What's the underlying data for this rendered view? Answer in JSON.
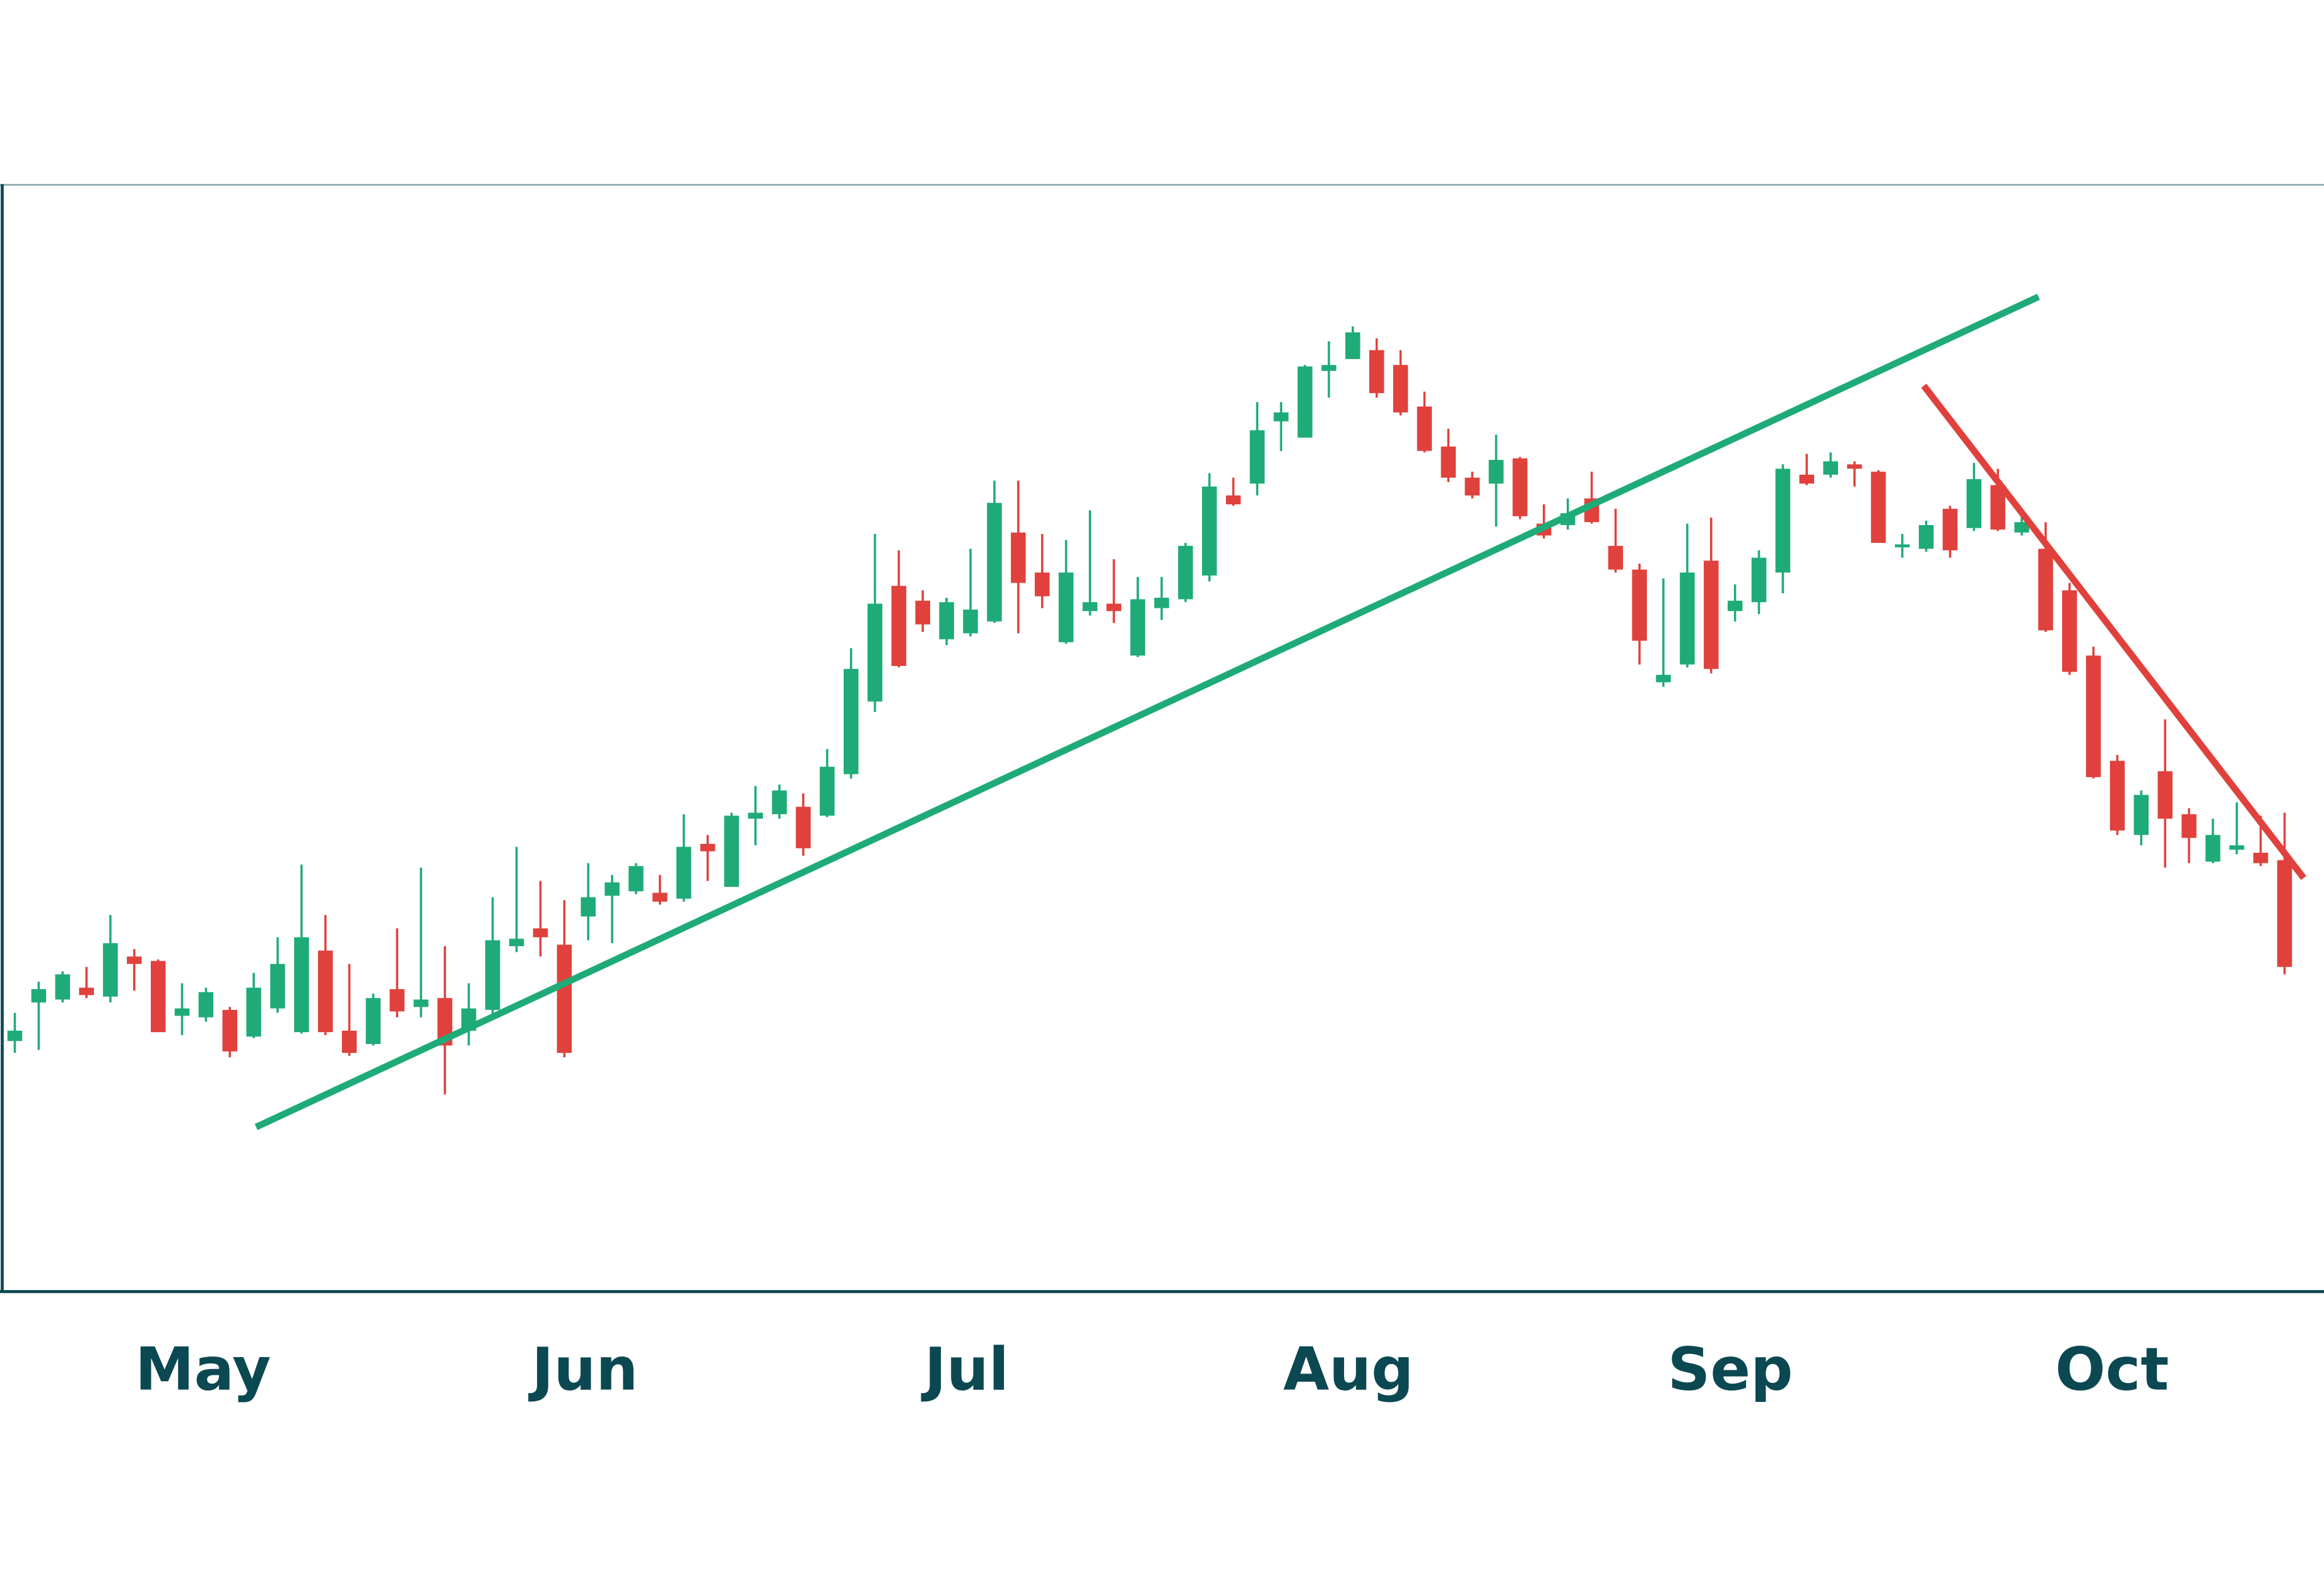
{
  "chart_data": {
    "type": "candlestick",
    "categories": [
      "May",
      "Jun",
      "Jul",
      "Aug",
      "Sep",
      "Oct"
    ],
    "up_color": "#1fab77",
    "down_color": "#e0413c",
    "ylim": [
      0,
      745
    ],
    "open": [
      168,
      194,
      196,
      204,
      198,
      225,
      222,
      185,
      184,
      189,
      171,
      190,
      174,
      229,
      175,
      166,
      203,
      191,
      197,
      175,
      189,
      232,
      244,
      233,
      252,
      266,
      269,
      268,
      264,
      301,
      272,
      318,
      321,
      326,
      320,
      348,
      397,
      475,
      465,
      439,
      443,
      451,
      511,
      484,
      437,
      458,
      463,
      428,
      460,
      466,
      482,
      536,
      544,
      586,
      575,
      620,
      628,
      634,
      624,
      596,
      569,
      548,
      544,
      561,
      517,
      516,
      534,
      502,
      486,
      410,
      422,
      492,
      458,
      464,
      484,
      550,
      550,
      557,
      552,
      501,
      500,
      527,
      514,
      543,
      511,
      500,
      472,
      428,
      357,
      307,
      350,
      321,
      289,
      297,
      295,
      290
    ],
    "high": [
      187,
      208,
      215,
      218,
      253,
      230,
      223,
      207,
      204,
      191,
      214,
      238,
      287,
      253,
      220,
      200,
      244,
      285,
      232,
      207,
      265,
      299,
      276,
      263,
      288,
      280,
      288,
      280,
      321,
      307,
      322,
      340,
      341,
      335,
      365,
      433,
      510,
      499,
      472,
      467,
      500,
      546,
      546,
      510,
      506,
      526,
      493,
      481,
      481,
      504,
      551,
      548,
      599,
      599,
      624,
      640,
      650,
      642,
      634,
      606,
      581,
      552,
      577,
      562,
      530,
      534,
      552,
      527,
      490,
      480,
      517,
      521,
      476,
      499,
      557,
      564,
      565,
      559,
      553,
      510,
      519,
      529,
      558,
      554,
      522,
      518,
      477,
      434,
      361,
      337,
      385,
      325,
      318,
      329,
      320,
      322
    ],
    "low": [
      160,
      162,
      194,
      197,
      194,
      202,
      174,
      172,
      181,
      157,
      170,
      187,
      173,
      172,
      158,
      165,
      184,
      184,
      132,
      165,
      186,
      228,
      225,
      157,
      236,
      234,
      267,
      260,
      262,
      276,
      272,
      300,
      318,
      293,
      319,
      345,
      390,
      420,
      444,
      435,
      441,
      450,
      443,
      460,
      436,
      455,
      450,
      427,
      452,
      464,
      478,
      529,
      536,
      566,
      575,
      602,
      628,
      602,
      590,
      565,
      545,
      534,
      515,
      520,
      507,
      513,
      517,
      484,
      422,
      407,
      420,
      416,
      451,
      456,
      470,
      543,
      548,
      542,
      504,
      494,
      498,
      494,
      512,
      512,
      509,
      444,
      415,
      345,
      307,
      300,
      285,
      288,
      288,
      294,
      286,
      213
    ],
    "close": [
      175,
      203,
      213,
      199,
      234,
      220,
      174,
      190,
      201,
      161,
      204,
      220,
      238,
      174,
      160,
      197,
      188,
      196,
      165,
      190,
      236,
      237,
      238,
      160,
      265,
      275,
      286,
      262,
      299,
      296,
      320,
      322,
      337,
      298,
      353,
      419,
      463,
      421,
      449,
      464,
      459,
      531,
      477,
      468,
      484,
      464,
      458,
      466,
      467,
      502,
      542,
      530,
      580,
      592,
      623,
      624,
      646,
      605,
      592,
      566,
      548,
      536,
      560,
      522,
      509,
      524,
      518,
      486,
      438,
      415,
      484,
      419,
      465,
      494,
      554,
      544,
      559,
      554,
      504,
      503,
      516,
      499,
      547,
      513,
      518,
      445,
      417,
      346,
      310,
      334,
      318,
      305,
      307,
      300,
      288,
      218
    ],
    "trendlines": [
      {
        "color": "#1fab77",
        "x": [
          10.1,
          84.7
        ],
        "y": [
          110,
          670
        ]
      },
      {
        "color": "#e0413c",
        "x": [
          79.9,
          95.8
        ],
        "y": [
          610,
          278
        ]
      }
    ]
  }
}
